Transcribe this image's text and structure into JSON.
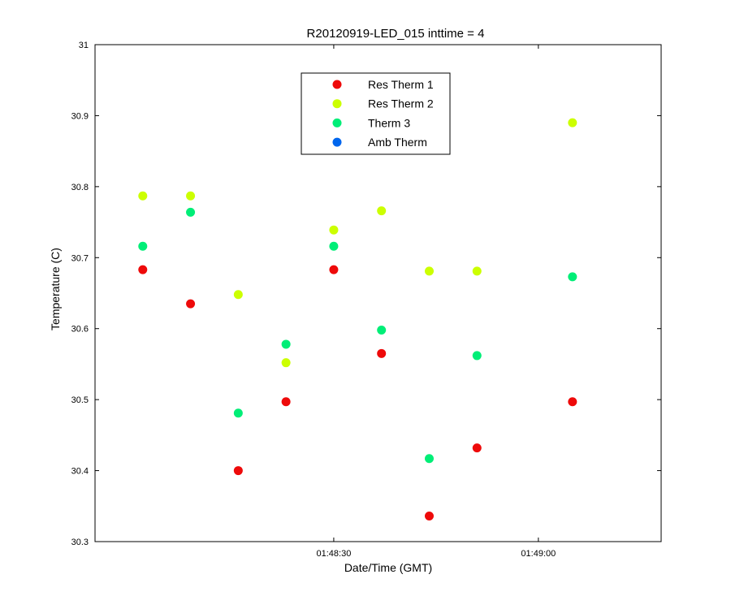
{
  "chart_data": {
    "type": "scatter",
    "title": "R20120919-LED_015 inttime = 4",
    "xlabel": "Date/Time (GMT)",
    "ylabel": "Temperature (C)",
    "x_unit": "time (HH:MM:SS, GMT)",
    "xlim": [
      "01:47:55",
      "01:49:18"
    ],
    "ylim": [
      30.3,
      31
    ],
    "x_ticks": [
      "01:48:30",
      "01:49:00"
    ],
    "y_ticks": [
      "30.3",
      "30.4",
      "30.5",
      "30.6",
      "30.7",
      "30.8",
      "30.9",
      "31"
    ],
    "grid": false,
    "legend_position": "top-center",
    "x": [
      "01:48:02",
      "01:48:09",
      "01:48:16",
      "01:48:23",
      "01:48:30",
      "01:48:37",
      "01:48:44",
      "01:48:51",
      "01:48:58",
      "01:49:05"
    ],
    "series": [
      {
        "name": "Res Therm 1",
        "color": "#ee0a0a",
        "values": [
          30.683,
          30.635,
          30.4,
          30.497,
          30.683,
          30.565,
          30.336,
          30.432,
          null,
          30.497
        ]
      },
      {
        "name": "Res Therm 2",
        "color": "#ccff00",
        "values": [
          30.787,
          30.787,
          30.648,
          30.552,
          30.739,
          30.766,
          30.681,
          30.681,
          null,
          30.89
        ]
      },
      {
        "name": "Therm 3",
        "color": "#00ee77",
        "values": [
          30.716,
          30.764,
          30.481,
          30.578,
          30.716,
          30.598,
          30.417,
          30.562,
          null,
          30.673
        ]
      },
      {
        "name": "Amb Therm",
        "color": "#0066ee",
        "values": [
          null,
          null,
          null,
          null,
          null,
          null,
          null,
          null,
          null,
          null
        ]
      }
    ]
  }
}
